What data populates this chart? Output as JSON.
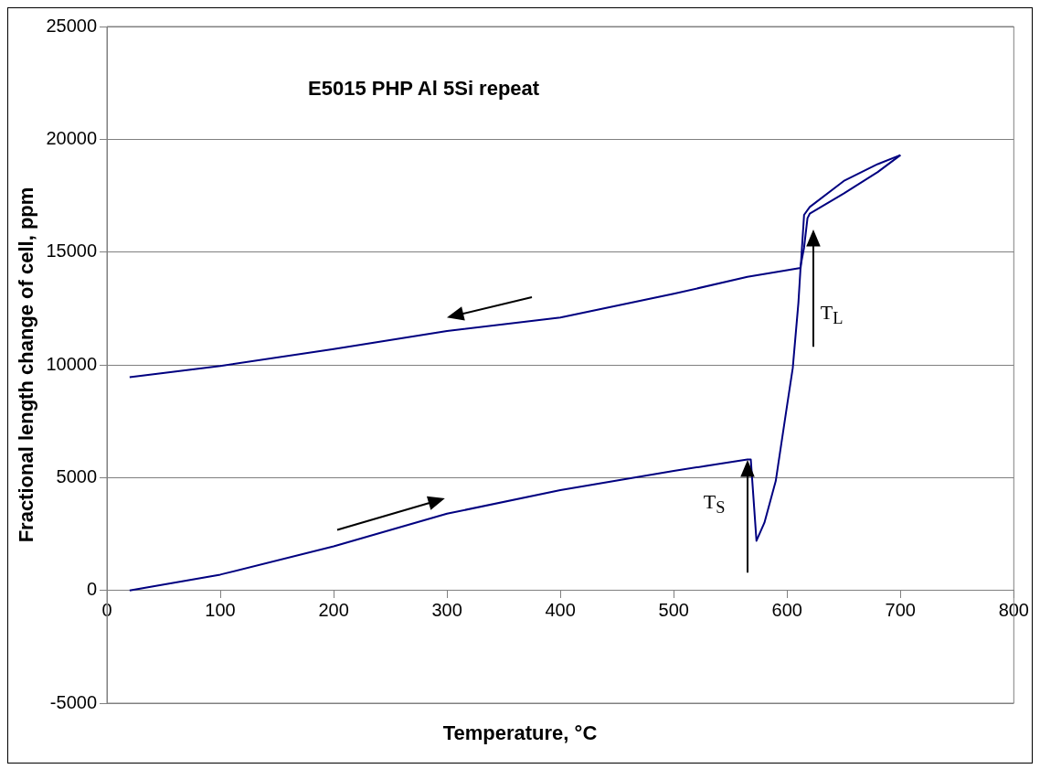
{
  "chart_data": {
    "type": "line",
    "title": "E5015 PHP Al 5Si repeat",
    "xlabel": "Temperature, °C",
    "ylabel": "Fractional length change of cell, ppm",
    "series": [
      {
        "color": "#000080",
        "x": [
          20,
          100,
          200,
          300,
          400,
          500,
          565,
          568,
          573,
          580,
          590,
          600,
          605,
          610,
          612,
          615,
          618,
          620,
          650,
          680,
          700
        ],
        "values": [
          0,
          700,
          1950,
          3400,
          4450,
          5300,
          5800,
          5800,
          2200,
          3000,
          4850,
          8200,
          9850,
          12750,
          14400,
          15200,
          16500,
          16700,
          17600,
          18550,
          19300
        ]
      },
      {
        "color": "#000080",
        "x": [
          700,
          680,
          650,
          620,
          615,
          612,
          600,
          565,
          500,
          400,
          300,
          200,
          100,
          20
        ],
        "values": [
          19300,
          18900,
          18150,
          17000,
          16650,
          14300,
          14200,
          13900,
          13150,
          12100,
          11500,
          10700,
          9950,
          9450
        ]
      }
    ],
    "annotations": [
      "T$_{S}$",
      "T$_{L}$"
    ],
    "xlim": [
      0,
      800
    ],
    "xticks": [
      0,
      100,
      200,
      300,
      400,
      500,
      600,
      700,
      800
    ],
    "ylim": [
      -5000,
      25000
    ],
    "yticks": [
      -5000,
      0,
      5000,
      10000,
      15000,
      20000,
      25000
    ],
    "grid": "y",
    "legend": false
  }
}
